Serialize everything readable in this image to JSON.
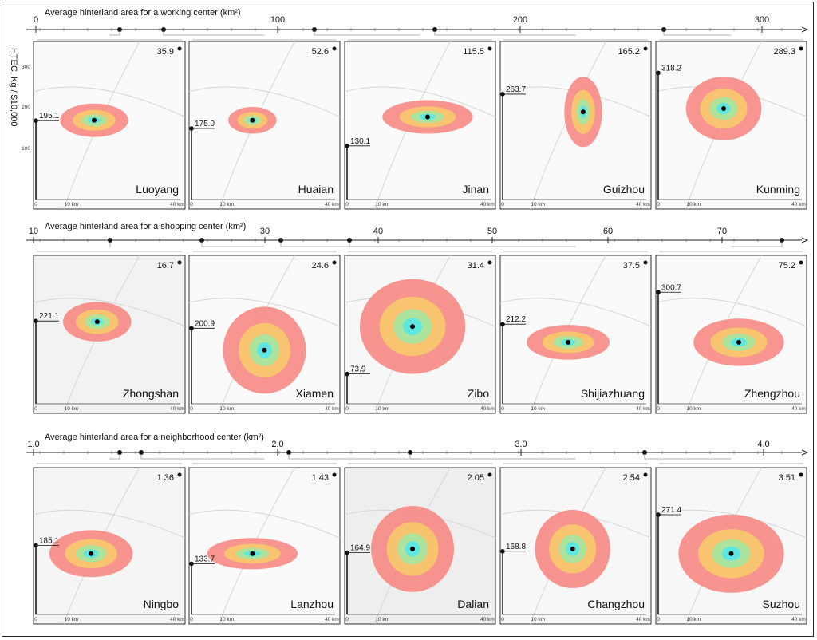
{
  "chart_data": [
    {
      "type": "scatter",
      "title": "Average hinterland area for a working center (km²)",
      "axis_ticks": [
        "0",
        "100",
        "200",
        "300"
      ],
      "xlim": [
        0,
        320
      ],
      "ylabel": "HTEC, Kg / $10,000",
      "y_ticks": [
        "300",
        "200",
        "100"
      ],
      "ylim": [
        0,
        350
      ],
      "scale_labels": [
        "0",
        "10 km",
        "40 km"
      ],
      "cities": [
        {
          "name": "Luoyang",
          "area": "35.9",
          "htec": "195.1",
          "x": 35.9,
          "y": 195.1
        },
        {
          "name": "Huaian",
          "area": "52.6",
          "htec": "175.0",
          "x": 52.6,
          "y": 175.0
        },
        {
          "name": "Jinan",
          "area": "115.5",
          "htec": "130.1",
          "x": 115.5,
          "y": 130.1
        },
        {
          "name": "Guizhou",
          "area": "165.2",
          "htec": "263.7",
          "x": 165.2,
          "y": 263.7
        },
        {
          "name": "Kunming",
          "area": "289.3",
          "htec": "318.2",
          "x": 289.3,
          "y": 318.2
        }
      ]
    },
    {
      "type": "scatter",
      "title": "Average hinterland area for a shopping center (km²)",
      "axis_ticks": [
        "10",
        "30",
        "40",
        "50",
        "60",
        "70"
      ],
      "xlim": [
        10,
        78
      ],
      "scale_labels": [
        "0",
        "10 km",
        "40 km"
      ],
      "cities": [
        {
          "name": "Zhongshan",
          "area": "16.7",
          "htec": "221.1",
          "x": 16.7,
          "y": 221.1
        },
        {
          "name": "Xiamen",
          "area": "24.6",
          "htec": "200.9",
          "x": 24.6,
          "y": 200.9
        },
        {
          "name": "Zibo",
          "area": "31.4",
          "htec": "73.9",
          "x": 31.4,
          "y": 73.9
        },
        {
          "name": "Shijiazhuang",
          "area": "37.5",
          "htec": "212.2",
          "x": 37.5,
          "y": 212.2
        },
        {
          "name": "Zhengzhou",
          "area": "75.2",
          "htec": "300.7",
          "x": 75.2,
          "y": 300.7
        }
      ]
    },
    {
      "type": "scatter",
      "title": "Average hinterland area for a neighborhood center (km²)",
      "axis_ticks": [
        "1.0",
        "2.0",
        "3.0",
        "4.0"
      ],
      "xlim": [
        1.0,
        4.3
      ],
      "scale_labels": [
        "0",
        "10 km",
        "40 km"
      ],
      "cities": [
        {
          "name": "Ningbo",
          "area": "1.36",
          "htec": "185.1",
          "x": 1.36,
          "y": 185.1
        },
        {
          "name": "Lanzhou",
          "area": "1.43",
          "htec": "133.7",
          "x": 1.43,
          "y": 133.7
        },
        {
          "name": "Dalian",
          "area": "2.05",
          "htec": "164.9",
          "x": 2.05,
          "y": 164.9
        },
        {
          "name": "Changzhou",
          "area": "2.54",
          "htec": "168.8",
          "x": 2.54,
          "y": 168.8
        },
        {
          "name": "Suzhou",
          "area": "3.51",
          "htec": "271.4",
          "x": 3.51,
          "y": 271.4
        }
      ]
    }
  ]
}
